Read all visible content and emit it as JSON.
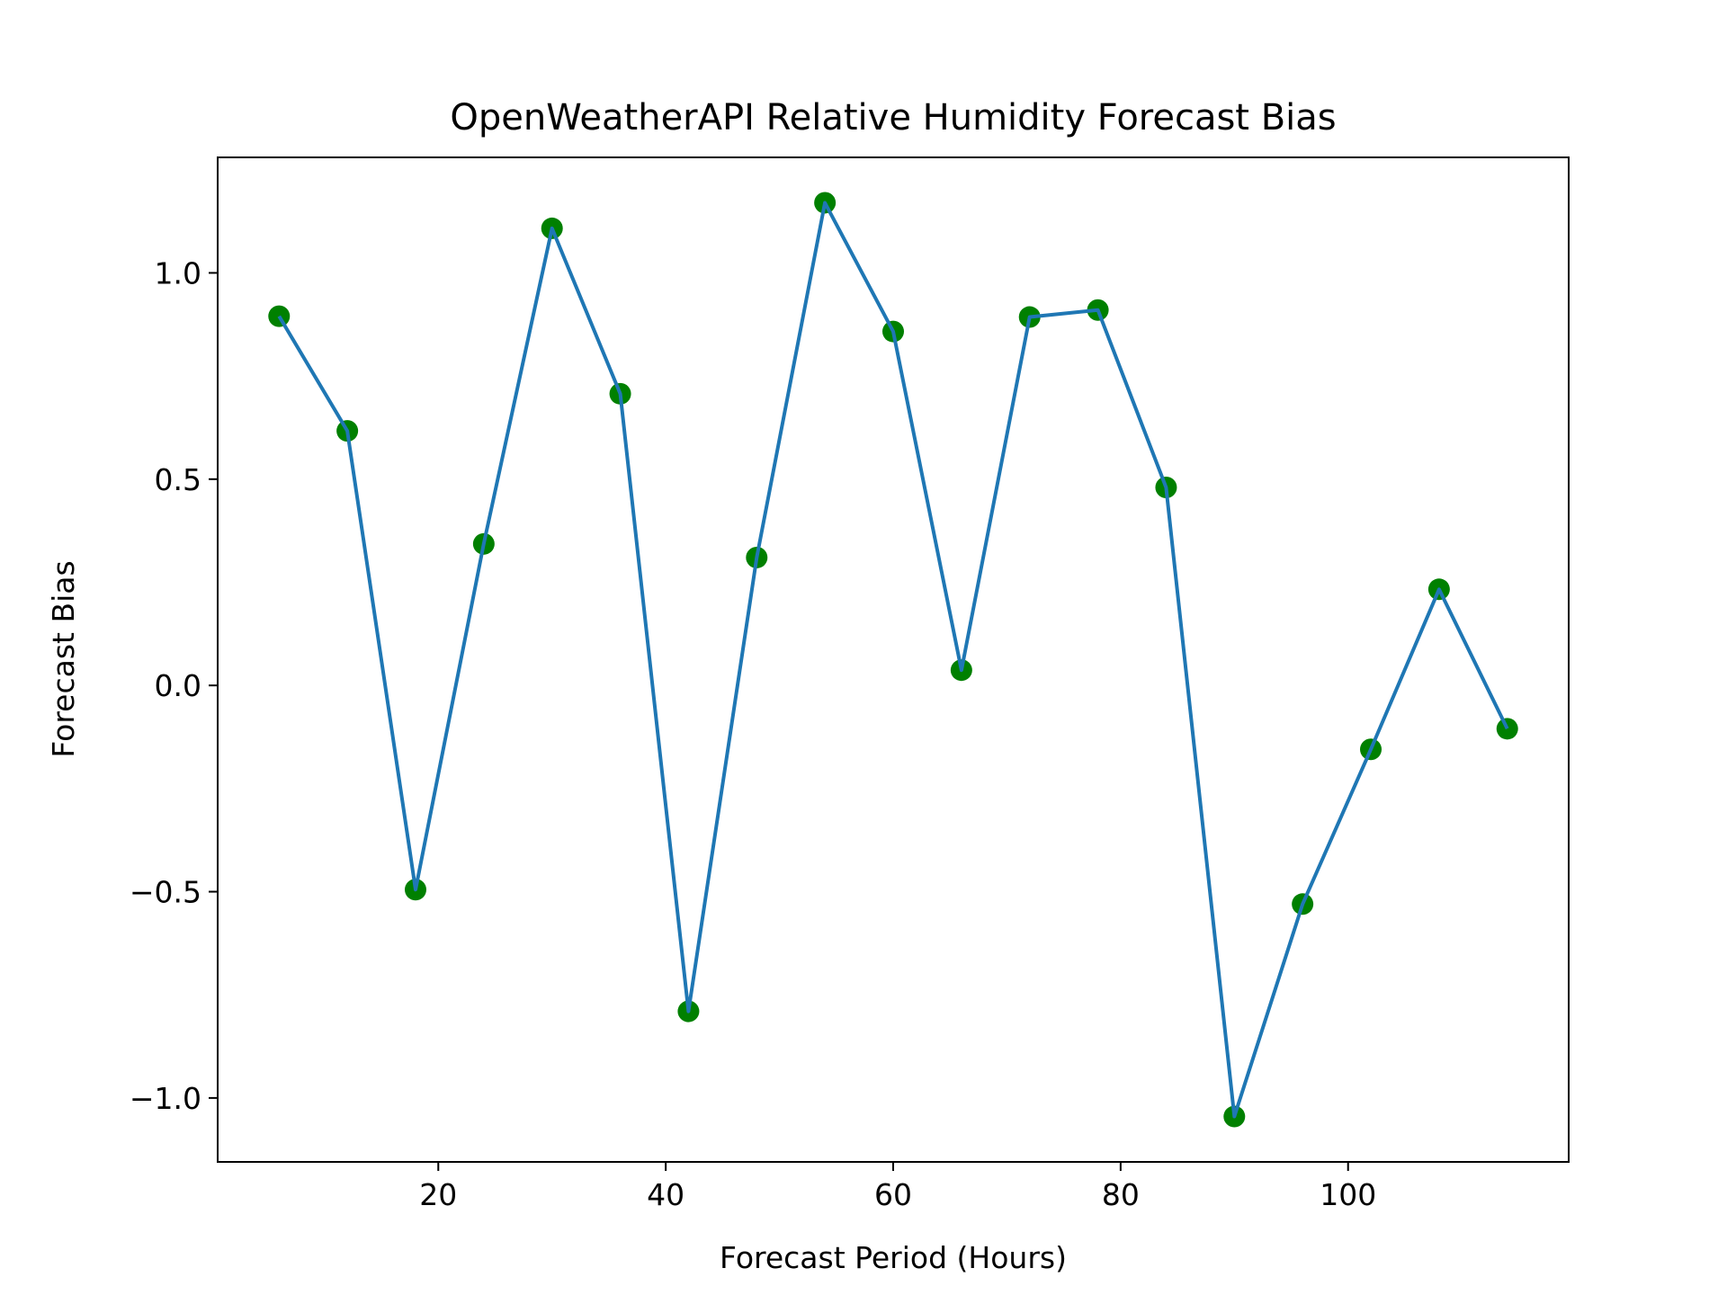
{
  "chart_data": {
    "type": "line",
    "title": "OpenWeatherAPI Relative Humidity Forecast Bias",
    "xlabel": "Forecast Period (Hours)",
    "ylabel": "Forecast Bias",
    "xlim": [
      0.6,
      119.4
    ],
    "ylim": [
      -1.155,
      1.28
    ],
    "xticks": [
      20,
      40,
      60,
      80,
      100
    ],
    "xtick_labels": [
      "20",
      "40",
      "60",
      "80",
      "100"
    ],
    "yticks": [
      1.0,
      0.5,
      0.0,
      -0.5,
      -1.0
    ],
    "ytick_labels": [
      "1.0",
      "0.5",
      "0.0",
      "−0.5",
      "−1.0"
    ],
    "grid": false,
    "legend": "none",
    "line_color": "#1f77b4",
    "marker_color": "#008000",
    "x": [
      6,
      12,
      18,
      24,
      30,
      36,
      42,
      48,
      54,
      60,
      66,
      72,
      78,
      84,
      90,
      96,
      102,
      108,
      114
    ],
    "y": [
      0.895,
      0.617,
      -0.495,
      0.343,
      1.108,
      0.707,
      -0.79,
      0.31,
      1.17,
      0.858,
      0.037,
      0.893,
      0.91,
      0.48,
      -1.045,
      -0.53,
      -0.155,
      0.233,
      -0.105
    ]
  }
}
